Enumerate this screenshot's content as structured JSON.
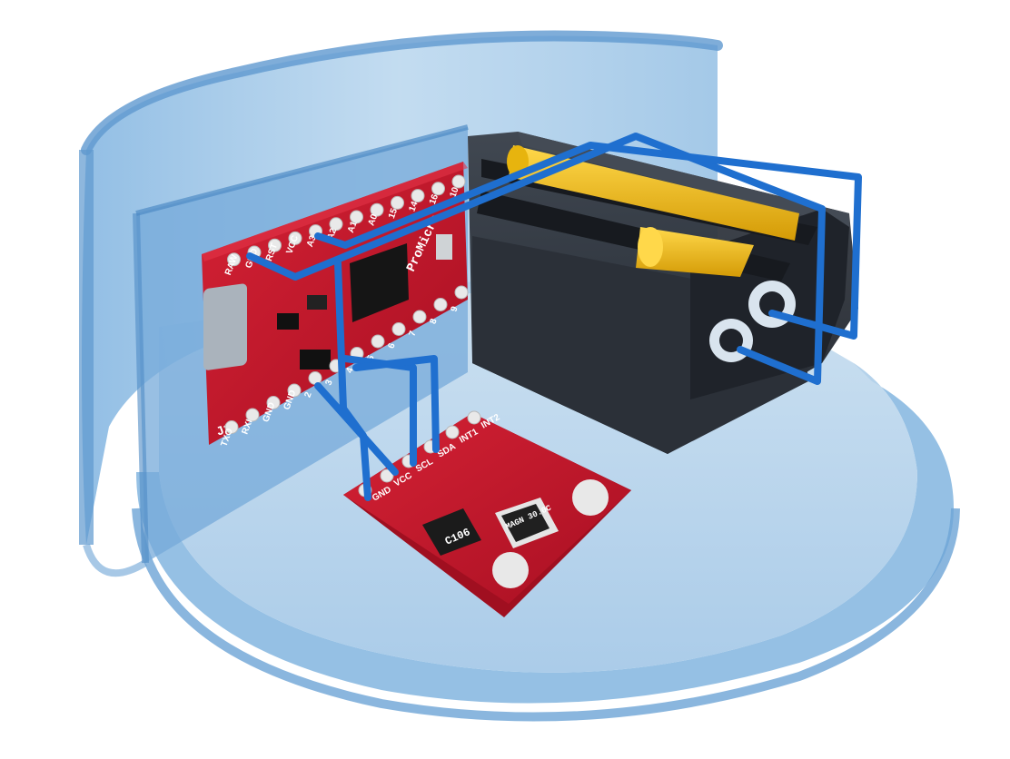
{
  "scene": {
    "colors": {
      "enclosure": "#6aa4d8",
      "enclosure_edge": "#4f8cc6",
      "pcb_red": "#c0152a",
      "wire_blue": "#1f6fcf",
      "battery_yellow": "#f1c01a",
      "holder_black": "#2a2f36"
    },
    "pro_micro": {
      "brand": "ProMicro",
      "top_pins": [
        "10",
        "16",
        "14",
        "15",
        "A0",
        "A1",
        "A2",
        "A3",
        "VCC",
        "RST",
        "GND",
        "RAW"
      ],
      "bottom_pins": [
        "9",
        "8",
        "7",
        "6",
        "5",
        "4",
        "3",
        "2",
        "GND",
        "GND",
        "RXI",
        "TXO"
      ],
      "jumper": "J1"
    },
    "sensor_board": {
      "pins": [
        "GND",
        "VCC",
        "SCL",
        "SDA",
        "INT1",
        "INT2"
      ],
      "chip_mark": "C106",
      "sensor_mark": "MAGN 30.0C"
    }
  }
}
